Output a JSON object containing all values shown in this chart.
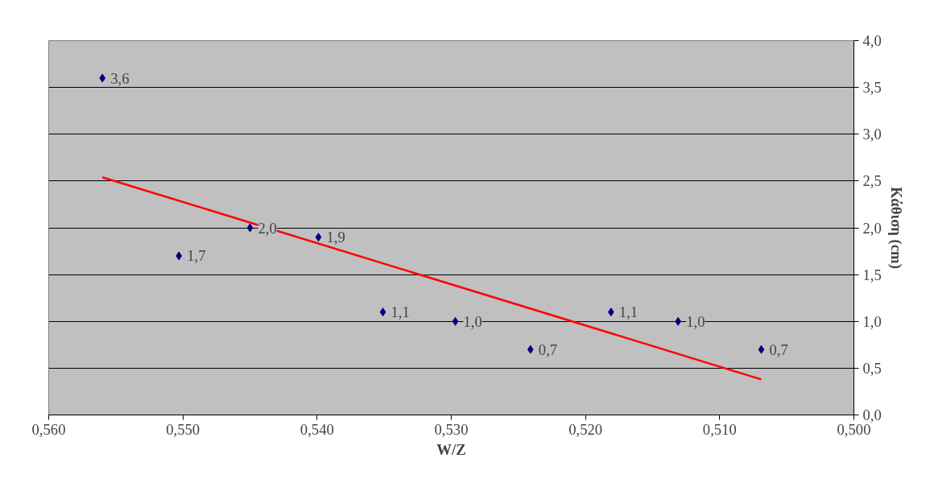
{
  "chart_data": {
    "type": "scatter",
    "xlabel": "W/Z",
    "ylabel": "Κάθιση (cm)",
    "xlim": [
      0.56,
      0.5
    ],
    "xticks": [
      {
        "value": 0.56,
        "label": "0,560"
      },
      {
        "value": 0.55,
        "label": "0,550"
      },
      {
        "value": 0.54,
        "label": "0,540"
      },
      {
        "value": 0.53,
        "label": "0,530"
      },
      {
        "value": 0.52,
        "label": "0,520"
      },
      {
        "value": 0.51,
        "label": "0,510"
      },
      {
        "value": 0.5,
        "label": "0,500"
      }
    ],
    "ylim": [
      0,
      4
    ],
    "yticks": [
      {
        "value": 0,
        "label": "0,0"
      },
      {
        "value": 0.5,
        "label": "0,5"
      },
      {
        "value": 1,
        "label": "1,0"
      },
      {
        "value": 1.5,
        "label": "1,5"
      },
      {
        "value": 2,
        "label": "2,0"
      },
      {
        "value": 2.5,
        "label": "2,5"
      },
      {
        "value": 3,
        "label": "3,0"
      },
      {
        "value": 3.5,
        "label": "3,5"
      },
      {
        "value": 4,
        "label": "4,0"
      }
    ],
    "grid": "y",
    "marker": "diamond",
    "series": [
      {
        "color": "#000080",
        "x": [
          0.556,
          0.5503,
          0.545,
          0.5399,
          0.5351,
          0.5297,
          0.5241,
          0.5181,
          0.5131,
          0.5069
        ],
        "values": [
          3.6,
          1.7,
          2.0,
          1.9,
          1.1,
          1.0,
          0.7,
          1.1,
          1.0,
          0.7
        ],
        "value_labels": [
          "3,6",
          "1,7",
          "2,0",
          "1,9",
          "1,1",
          "1,0",
          "0,7",
          "1,1",
          "1,0",
          "0,7"
        ]
      },
      {
        "type": "line",
        "color": "#ff0000",
        "marker": "none",
        "line_style": "solid",
        "x": [
          0.556,
          0.5069
        ],
        "values": [
          2.54,
          0.38
        ]
      }
    ]
  }
}
